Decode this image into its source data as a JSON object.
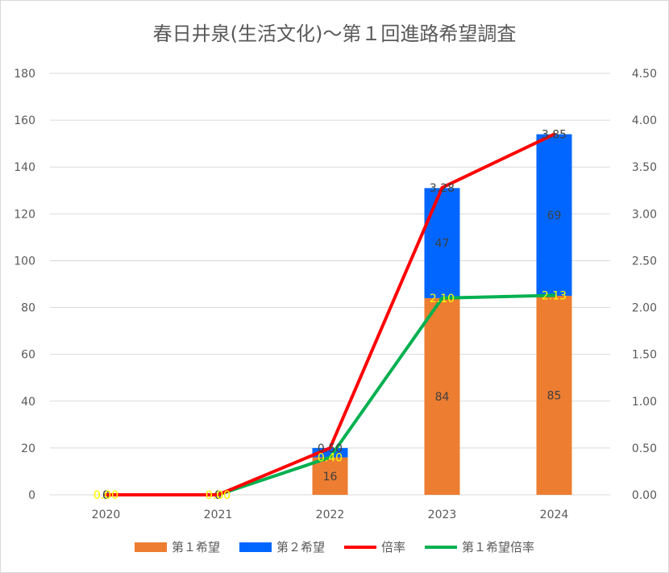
{
  "chart_data": {
    "type": "bar",
    "title": "春日井泉(生活文化)～第１回進路希望調査",
    "categories": [
      "2020",
      "2021",
      "2022",
      "2023",
      "2024"
    ],
    "y_left": {
      "ylim": [
        0,
        180
      ],
      "ticks": [
        "0",
        "20",
        "40",
        "60",
        "80",
        "100",
        "120",
        "140",
        "160",
        "180"
      ]
    },
    "y_right": {
      "ylim": [
        0,
        4.5
      ],
      "ticks": [
        "0.00",
        "0.50",
        "1.00",
        "1.50",
        "2.00",
        "2.50",
        "3.00",
        "3.50",
        "4.00",
        "4.50"
      ]
    },
    "series": [
      {
        "name": "第１希望",
        "kind": "bar",
        "axis": "left",
        "color": "#ED7D31",
        "values": [
          0,
          0,
          16,
          84,
          85
        ],
        "labels": [
          "0",
          "0",
          "16",
          "84",
          "85"
        ]
      },
      {
        "name": "第２希望",
        "kind": "bar",
        "axis": "left",
        "color": "#0066FF",
        "values": [
          0,
          0,
          4,
          47,
          69
        ],
        "labels": [
          "0",
          "0",
          "",
          "47",
          "69"
        ]
      },
      {
        "name": "倍率",
        "kind": "line",
        "axis": "right",
        "color": "#FF0000",
        "values": [
          0,
          0,
          0.5,
          3.28,
          3.85
        ],
        "labels": [
          "0.00",
          "0.00",
          "0.50",
          "3.28",
          "3.85"
        ]
      },
      {
        "name": "第１希望倍率",
        "kind": "line",
        "axis": "right",
        "color": "#00B050",
        "values": [
          0,
          0,
          0.4,
          2.1,
          2.13
        ],
        "labels": [
          "0.00",
          "0.00",
          "0.40",
          "2.10",
          "2.13"
        ]
      }
    ],
    "legend_position": "bottom",
    "grid": true
  }
}
